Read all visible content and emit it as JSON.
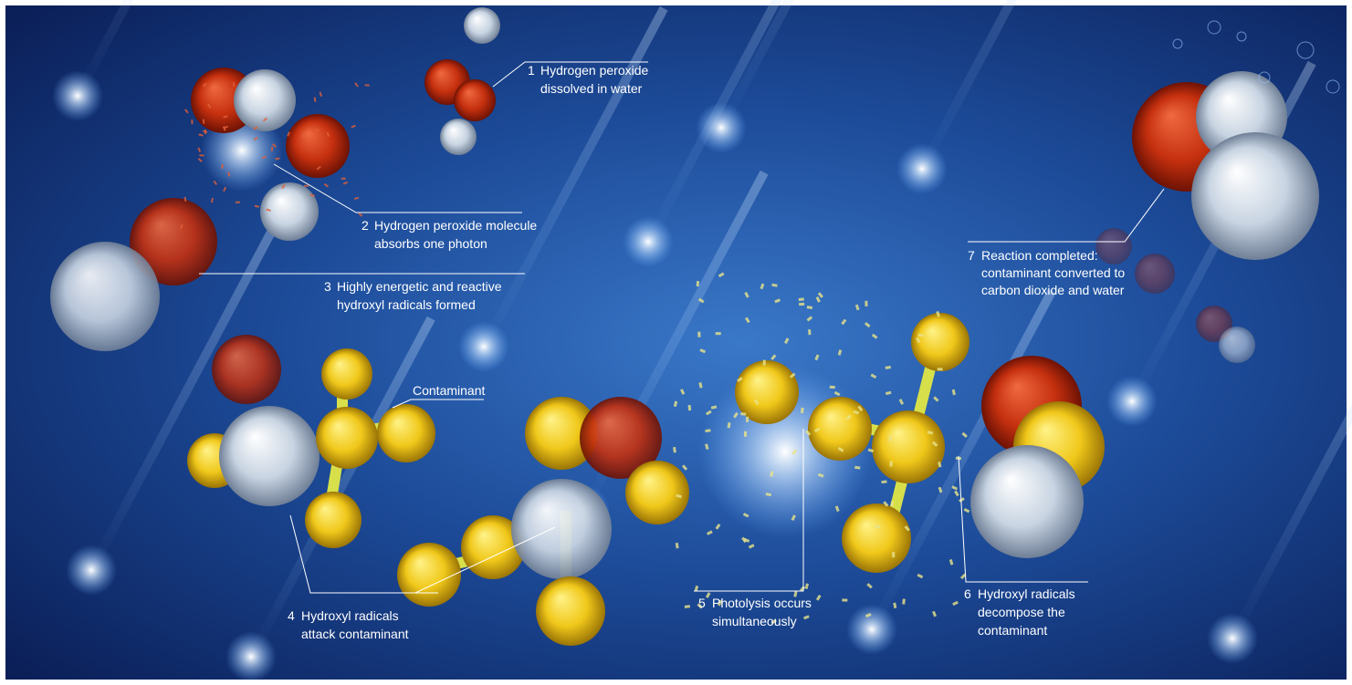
{
  "steps": [
    {
      "number": "1",
      "lines": [
        "Hydrogen peroxide",
        "dissolved in water"
      ]
    },
    {
      "number": "2",
      "lines": [
        "Hydrogen peroxide molecule",
        "absorbs one photon"
      ]
    },
    {
      "number": "3",
      "lines": [
        "Highly energetic and reactive",
        "hydroxyl radicals formed"
      ]
    },
    {
      "number": "4",
      "lines": [
        "Hydroxyl radicals",
        "attack contaminant"
      ]
    },
    {
      "number": "5",
      "lines": [
        "Photolysis occurs",
        "simultaneously"
      ]
    },
    {
      "number": "6",
      "lines": [
        "Hydroxyl radicals",
        "decompose the",
        "contaminant"
      ]
    },
    {
      "number": "7",
      "lines": [
        "Reaction completed:",
        "contaminant converted to",
        "carbon dioxide and water"
      ]
    }
  ],
  "labels": {
    "contaminant": "Contaminant"
  }
}
